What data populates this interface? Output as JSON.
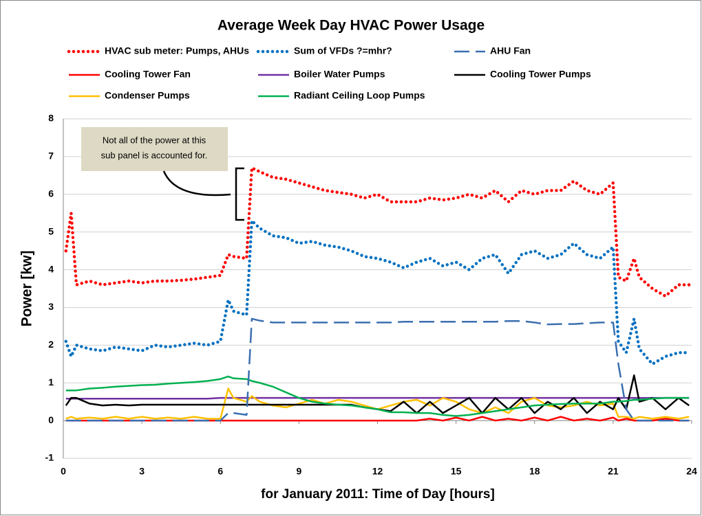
{
  "chart_data": {
    "type": "line",
    "title": "Average Week Day HVAC Power Usage",
    "xlabel": "for January 2011: Time of Day [hours]",
    "ylabel": "Power [kw]",
    "annotation": [
      "Not all of the power at this",
      "sub panel is accounted for."
    ],
    "xlim": [
      0,
      24
    ],
    "xticks": [
      0,
      3,
      6,
      9,
      12,
      15,
      18,
      21,
      24
    ],
    "ylim": [
      -1,
      8
    ],
    "yticks": [
      -1,
      0,
      1,
      2,
      3,
      4,
      5,
      6,
      7,
      8
    ],
    "grid": true,
    "x": [
      0.1,
      0.3,
      0.5,
      1,
      1.5,
      2,
      2.5,
      3,
      3.5,
      4,
      4.5,
      5,
      5.5,
      6,
      6.3,
      6.5,
      7,
      7.2,
      7.5,
      8,
      8.5,
      9,
      9.5,
      10,
      10.5,
      11,
      11.5,
      12,
      12.5,
      13,
      13.5,
      14,
      14.5,
      15,
      15.5,
      16,
      16.5,
      17,
      17.5,
      18,
      18.5,
      19,
      19.5,
      20,
      20.5,
      21,
      21.2,
      21.5,
      21.8,
      22,
      22.5,
      23,
      23.5,
      23.9
    ],
    "series": [
      {
        "name": "HVAC sub meter: Pumps, AHUs",
        "color": "#ff0000",
        "style": "dotted",
        "values": [
          4.5,
          5.5,
          3.6,
          3.7,
          3.6,
          3.65,
          3.7,
          3.65,
          3.7,
          3.7,
          3.72,
          3.75,
          3.8,
          3.85,
          4.4,
          4.35,
          4.3,
          6.7,
          6.6,
          6.45,
          6.4,
          6.3,
          6.2,
          6.1,
          6.05,
          6.0,
          5.9,
          6.0,
          5.8,
          5.8,
          5.8,
          5.9,
          5.85,
          5.9,
          6.0,
          5.9,
          6.1,
          5.8,
          6.1,
          6.0,
          6.1,
          6.1,
          6.35,
          6.1,
          6.0,
          6.3,
          3.8,
          3.7,
          4.3,
          3.8,
          3.5,
          3.3,
          3.6,
          3.6
        ]
      },
      {
        "name": "Sum of VFDs ?=mhr?",
        "color": "#0070c0",
        "style": "dotted",
        "values": [
          2.1,
          1.7,
          2.0,
          1.9,
          1.85,
          1.95,
          1.9,
          1.85,
          2.0,
          1.95,
          2.0,
          2.05,
          2.0,
          2.1,
          3.2,
          2.9,
          2.8,
          5.3,
          5.1,
          4.9,
          4.85,
          4.7,
          4.75,
          4.65,
          4.6,
          4.5,
          4.35,
          4.3,
          4.2,
          4.05,
          4.2,
          4.3,
          4.1,
          4.2,
          4.0,
          4.3,
          4.4,
          3.9,
          4.4,
          4.5,
          4.3,
          4.4,
          4.7,
          4.4,
          4.3,
          4.6,
          2.1,
          1.8,
          2.7,
          1.9,
          1.5,
          1.7,
          1.8,
          1.8
        ]
      },
      {
        "name": "AHU Fan",
        "color": "#3a6fb0",
        "style": "dashed",
        "values": [
          0,
          0,
          0,
          0,
          0,
          0,
          0,
          0,
          0,
          0,
          0,
          0,
          0,
          0,
          0.2,
          0.2,
          0.15,
          2.7,
          2.65,
          2.6,
          2.6,
          2.6,
          2.6,
          2.6,
          2.6,
          2.6,
          2.6,
          2.6,
          2.6,
          2.62,
          2.62,
          2.62,
          2.62,
          2.62,
          2.62,
          2.62,
          2.62,
          2.64,
          2.64,
          2.6,
          2.55,
          2.56,
          2.56,
          2.58,
          2.6,
          2.6,
          1.5,
          0.3,
          0,
          0,
          0,
          0,
          0,
          0
        ]
      },
      {
        "name": "Cooling Tower Fan",
        "color": "#ff0000",
        "style": "solid",
        "values": [
          0,
          0,
          0,
          0,
          0,
          0,
          0,
          0,
          0,
          0,
          0,
          0,
          0,
          0,
          0,
          0,
          0,
          0,
          0,
          0,
          0,
          0,
          0,
          0,
          0,
          0,
          0,
          0,
          0,
          0,
          0,
          0.05,
          0,
          0.08,
          0,
          0.1,
          0,
          0.05,
          0,
          0.08,
          0,
          0.1,
          0,
          0.05,
          0,
          0.08,
          0,
          0.05,
          0,
          0,
          0,
          0.05,
          0,
          0
        ]
      },
      {
        "name": "Boiler Water Pumps",
        "color": "#7030a0",
        "style": "solid",
        "values": [
          0.58,
          0.58,
          0.58,
          0.58,
          0.58,
          0.58,
          0.58,
          0.58,
          0.58,
          0.58,
          0.58,
          0.58,
          0.58,
          0.6,
          0.6,
          0.6,
          0.6,
          0.6,
          0.6,
          0.6,
          0.6,
          0.6,
          0.6,
          0.6,
          0.6,
          0.6,
          0.6,
          0.6,
          0.6,
          0.6,
          0.6,
          0.6,
          0.6,
          0.6,
          0.6,
          0.6,
          0.6,
          0.6,
          0.6,
          0.6,
          0.6,
          0.6,
          0.6,
          0.6,
          0.6,
          0.6,
          0.6,
          0.6,
          0.6,
          0.6,
          0.6,
          0.6,
          0.6,
          0.6
        ]
      },
      {
        "name": "Cooling Tower Pumps",
        "color": "#000000",
        "style": "solid",
        "values": [
          0.4,
          0.6,
          0.6,
          0.45,
          0.4,
          0.42,
          0.4,
          0.42,
          0.42,
          0.42,
          0.42,
          0.42,
          0.42,
          0.42,
          0.42,
          0.42,
          0.42,
          0.42,
          0.42,
          0.42,
          0.42,
          0.42,
          0.42,
          0.42,
          0.42,
          0.42,
          0.35,
          0.3,
          0.25,
          0.5,
          0.2,
          0.5,
          0.2,
          0.4,
          0.6,
          0.2,
          0.6,
          0.3,
          0.6,
          0.2,
          0.5,
          0.3,
          0.6,
          0.2,
          0.5,
          0.3,
          0.6,
          0.3,
          1.2,
          0.5,
          0.6,
          0.3,
          0.6,
          0.4
        ]
      },
      {
        "name": "Condenser Pumps",
        "color": "#ffc000",
        "style": "solid",
        "values": [
          0.05,
          0.1,
          0.05,
          0.08,
          0.05,
          0.1,
          0.05,
          0.1,
          0.05,
          0.08,
          0.05,
          0.1,
          0.05,
          0.05,
          0.85,
          0.6,
          0.5,
          0.65,
          0.5,
          0.4,
          0.35,
          0.45,
          0.55,
          0.45,
          0.55,
          0.5,
          0.4,
          0.3,
          0.4,
          0.5,
          0.55,
          0.4,
          0.6,
          0.5,
          0.3,
          0.2,
          0.35,
          0.2,
          0.5,
          0.6,
          0.4,
          0.35,
          0.4,
          0.5,
          0.4,
          0.45,
          0.1,
          0.1,
          0.05,
          0.1,
          0.05,
          0.1,
          0.05,
          0.1
        ]
      },
      {
        "name": "Radiant Ceiling Loop Pumps",
        "color": "#00b050",
        "style": "solid",
        "values": [
          0.8,
          0.8,
          0.8,
          0.85,
          0.87,
          0.9,
          0.92,
          0.94,
          0.95,
          0.98,
          1.0,
          1.02,
          1.05,
          1.1,
          1.17,
          1.12,
          1.1,
          1.05,
          1.0,
          0.9,
          0.75,
          0.6,
          0.5,
          0.45,
          0.42,
          0.4,
          0.35,
          0.3,
          0.22,
          0.22,
          0.2,
          0.2,
          0.15,
          0.12,
          0.15,
          0.2,
          0.25,
          0.3,
          0.35,
          0.4,
          0.42,
          0.44,
          0.45,
          0.45,
          0.45,
          0.5,
          0.5,
          0.52,
          0.55,
          0.55,
          0.58,
          0.6,
          0.6,
          0.6
        ]
      }
    ]
  }
}
